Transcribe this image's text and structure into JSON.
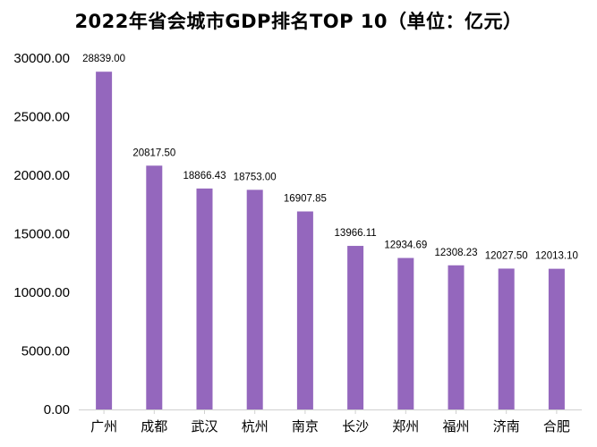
{
  "chart_data": {
    "type": "bar",
    "title": "2022年省会城市GDP排名TOP 10（单位：亿元）",
    "xlabel": "",
    "ylabel": "",
    "categories": [
      "广州",
      "成都",
      "武汉",
      "杭州",
      "南京",
      "长沙",
      "郑州",
      "福州",
      "济南",
      "合肥"
    ],
    "values": [
      28839.0,
      20817.5,
      18866.43,
      18753.0,
      16907.85,
      13966.11,
      12934.69,
      12308.23,
      12027.5,
      12013.1
    ],
    "value_labels": [
      "28839.00",
      "20817.50",
      "18866.43",
      "18753.00",
      "16907.85",
      "13966.11",
      "12934.69",
      "12308.23",
      "12027.50",
      "12013.10"
    ],
    "ylim": [
      0,
      30000
    ],
    "yticks": [
      0,
      5000,
      10000,
      15000,
      20000,
      25000,
      30000
    ],
    "ytick_labels": [
      "0.00",
      "5000.00",
      "10000.00",
      "15000.00",
      "20000.00",
      "25000.00",
      "30000.00"
    ],
    "grid": false,
    "bar_color": "#9467BD"
  }
}
